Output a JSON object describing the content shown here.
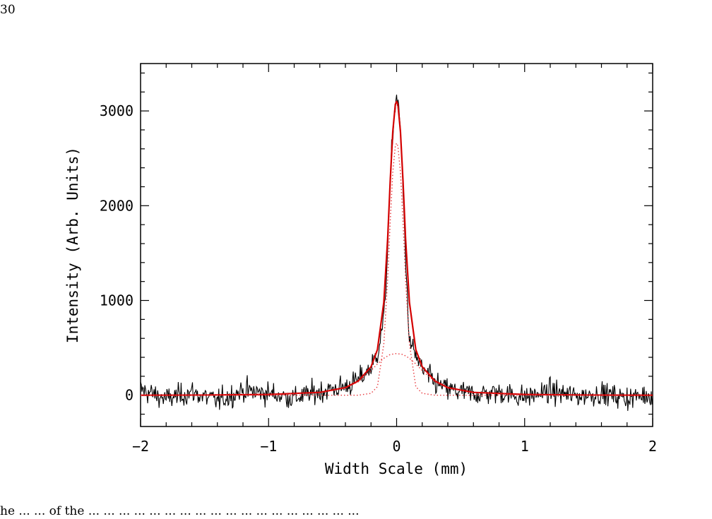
{
  "page": {
    "page_number": "30",
    "caption_fragment": "he ... ... of the ... ... ... ... ... ... ... ... ... ... ... ... ... ... ... ... ... ..."
  },
  "chart_data": {
    "type": "line",
    "title": "",
    "xlabel": "Width Scale (mm)",
    "ylabel": "Intensity (Arb. Units)",
    "xlim": [
      -2,
      2
    ],
    "ylim": [
      -330,
      3500
    ],
    "x_ticks": [
      -2,
      -1,
      0,
      1,
      2
    ],
    "x_tick_labels": [
      "−2",
      "−1",
      "0",
      "1",
      "2"
    ],
    "y_ticks": [
      0,
      1000,
      2000,
      3000
    ],
    "y_tick_labels": [
      "0",
      "1000",
      "2000",
      "3000"
    ],
    "grid": false,
    "legend": "none",
    "colors": {
      "data": "#000000",
      "fit": "#d40000",
      "components": "#e8383d"
    },
    "series": [
      {
        "role": "measured-data",
        "style": "solid-black-noisy",
        "x": [
          -2.0,
          -1.8,
          -1.6,
          -1.4,
          -1.2,
          -1.0,
          -0.8,
          -0.6,
          -0.4,
          -0.3,
          -0.2,
          -0.15,
          -0.1,
          -0.08,
          -0.06,
          -0.04,
          -0.02,
          0.0,
          0.02,
          0.04,
          0.06,
          0.08,
          0.1,
          0.15,
          0.2,
          0.3,
          0.4,
          0.6,
          0.8,
          1.0,
          1.2,
          1.4,
          1.6,
          1.8,
          2.0
        ],
        "y": [
          60,
          -40,
          30,
          -60,
          50,
          20,
          -30,
          40,
          90,
          160,
          290,
          440,
          800,
          1250,
          1900,
          2550,
          2950,
          3150,
          3000,
          2500,
          1800,
          1150,
          560,
          420,
          270,
          130,
          60,
          10,
          30,
          -20,
          40,
          -10,
          20,
          -30,
          10
        ]
      },
      {
        "role": "total-fit",
        "style": "solid-red",
        "x": [
          -2.0,
          -1.5,
          -1.0,
          -0.6,
          -0.4,
          -0.3,
          -0.2,
          -0.15,
          -0.1,
          -0.07,
          -0.05,
          -0.03,
          -0.01,
          0.0,
          0.01,
          0.03,
          0.05,
          0.07,
          0.1,
          0.15,
          0.2,
          0.3,
          0.4,
          0.6,
          1.0,
          1.5,
          2.0
        ],
        "y": [
          0,
          2,
          8,
          30,
          80,
          150,
          300,
          480,
          980,
          1650,
          2260,
          2780,
          3070,
          3100,
          3070,
          2780,
          2260,
          1650,
          980,
          480,
          300,
          150,
          80,
          30,
          8,
          2,
          0
        ]
      },
      {
        "role": "narrow-component",
        "style": "dotted-red",
        "x": [
          -2.0,
          -0.3,
          -0.2,
          -0.15,
          -0.1,
          -0.07,
          -0.05,
          -0.03,
          -0.01,
          0.0,
          0.01,
          0.03,
          0.05,
          0.07,
          0.1,
          0.15,
          0.2,
          0.3,
          2.0
        ],
        "y": [
          0,
          0,
          20,
          90,
          540,
          1220,
          1830,
          2350,
          2630,
          2660,
          2630,
          2350,
          1830,
          1220,
          540,
          90,
          20,
          0,
          0
        ]
      },
      {
        "role": "broad-component",
        "style": "dotted-red",
        "x": [
          -2.0,
          -1.0,
          -0.6,
          -0.4,
          -0.3,
          -0.2,
          -0.15,
          -0.1,
          -0.05,
          0.0,
          0.05,
          0.1,
          0.15,
          0.2,
          0.3,
          0.4,
          0.6,
          1.0,
          2.0
        ],
        "y": [
          0,
          5,
          25,
          75,
          140,
          260,
          330,
          390,
          430,
          440,
          430,
          390,
          330,
          260,
          140,
          75,
          25,
          5,
          0
        ]
      }
    ]
  }
}
